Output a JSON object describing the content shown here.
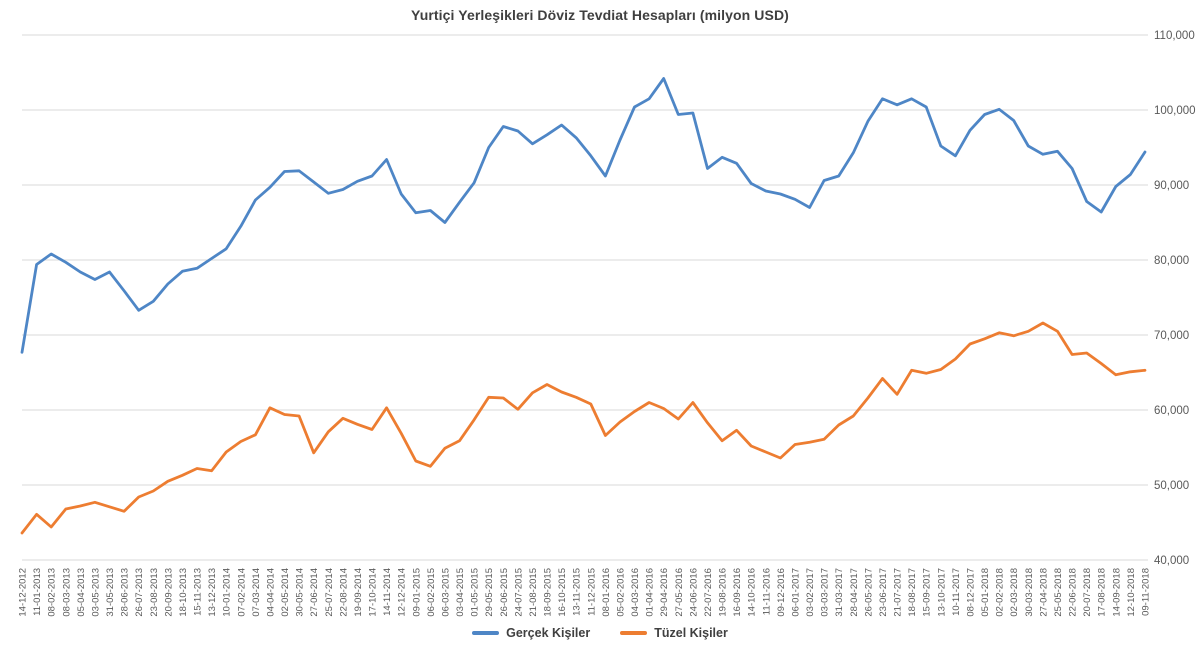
{
  "chart_data": {
    "type": "line",
    "title": "Yurtiçi Yerleşikleri Döviz Tevdiat Hesapları (milyon USD)",
    "ylim": [
      40000,
      110000
    ],
    "yticks": [
      40000,
      50000,
      60000,
      70000,
      80000,
      90000,
      100000,
      110000
    ],
    "y_axis_side": "right",
    "grid": "horizontal",
    "legend_position": "bottom",
    "gridline_color": "#d9d9d9",
    "axis_text_color": "#595959",
    "categories": [
      "14-12-2012",
      "11-01-2013",
      "08-02-2013",
      "08-03-2013",
      "05-04-2013",
      "03-05-2013",
      "31-05-2013",
      "28-06-2013",
      "26-07-2013",
      "23-08-2013",
      "20-09-2013",
      "18-10-2013",
      "15-11-2013",
      "13-12-2013",
      "10-01-2014",
      "07-02-2014",
      "07-03-2014",
      "04-04-2014",
      "02-05-2014",
      "30-05-2014",
      "27-06-2014",
      "25-07-2014",
      "22-08-2014",
      "19-09-2014",
      "17-10-2014",
      "14-11-2014",
      "12-12-2014",
      "09-01-2015",
      "06-02-2015",
      "06-03-2015",
      "03-04-2015",
      "01-05-2015",
      "29-05-2015",
      "26-06-2015",
      "24-07-2015",
      "21-08-2015",
      "18-09-2015",
      "16-10-2015",
      "13-11-2015",
      "11-12-2015",
      "08-01-2016",
      "05-02-2016",
      "04-03-2016",
      "01-04-2016",
      "29-04-2016",
      "27-05-2016",
      "24-06-2016",
      "22-07-2016",
      "19-08-2016",
      "16-09-2016",
      "14-10-2016",
      "11-11-2016",
      "09-12-2016",
      "06-01-2017",
      "03-02-2017",
      "03-03-2017",
      "31-03-2017",
      "28-04-2017",
      "26-05-2017",
      "23-06-2017",
      "21-07-2017",
      "18-08-2017",
      "15-09-2017",
      "13-10-2017",
      "10-11-2017",
      "08-12-2017",
      "05-01-2018",
      "02-02-2018",
      "02-03-2018",
      "30-03-2018",
      "27-04-2018",
      "25-05-2018",
      "22-06-2018",
      "20-07-2018",
      "17-08-2018",
      "14-09-2018",
      "12-10-2018",
      "09-11-2018"
    ],
    "series": [
      {
        "name": "Gerçek Kişiler",
        "color": "#4e86c6",
        "values": [
          67700,
          79400,
          80800,
          79700,
          78400,
          77400,
          78400,
          75900,
          73300,
          74500,
          76800,
          78500,
          78900,
          80200,
          81500,
          84500,
          88000,
          89700,
          91800,
          91900,
          90400,
          88900,
          89400,
          90500,
          91200,
          93400,
          88800,
          86300,
          86600,
          85000,
          87700,
          90300,
          95000,
          97800,
          97200,
          95500,
          96700,
          98000,
          96300,
          93900,
          91200,
          96000,
          100400,
          101500,
          104200,
          99400,
          99600,
          92200,
          93700,
          92900,
          90200,
          89200,
          88800,
          88100,
          87000,
          90600,
          91200,
          94300,
          98500,
          101500,
          100700,
          101500,
          100400,
          95200,
          93900,
          97300,
          99400,
          100100,
          98600,
          95200,
          94100,
          94500,
          92200,
          87800,
          86400,
          89800,
          91400,
          94400
        ]
      },
      {
        "name": "Tüzel Kişiler",
        "color": "#ed7d31",
        "values": [
          43600,
          46100,
          44400,
          46800,
          47200,
          47700,
          47100,
          46500,
          48400,
          49200,
          50500,
          51300,
          52200,
          51900,
          54400,
          55800,
          56700,
          60300,
          59400,
          59200,
          54300,
          57100,
          58900,
          58100,
          57400,
          60300,
          56900,
          53200,
          52500,
          54900,
          55900,
          58700,
          61700,
          61600,
          60100,
          62300,
          63400,
          62400,
          61700,
          60800,
          56600,
          58400,
          59800,
          61000,
          60200,
          58800,
          61000,
          58300,
          55900,
          57300,
          55200,
          54400,
          53600,
          55400,
          55700,
          56100,
          58000,
          59200,
          61600,
          64200,
          62100,
          65300,
          64900,
          65400,
          66800,
          68800,
          69500,
          70300,
          69900,
          70500,
          71600,
          70500,
          67400,
          67600,
          66200,
          64700,
          65100,
          65300
        ]
      }
    ]
  }
}
